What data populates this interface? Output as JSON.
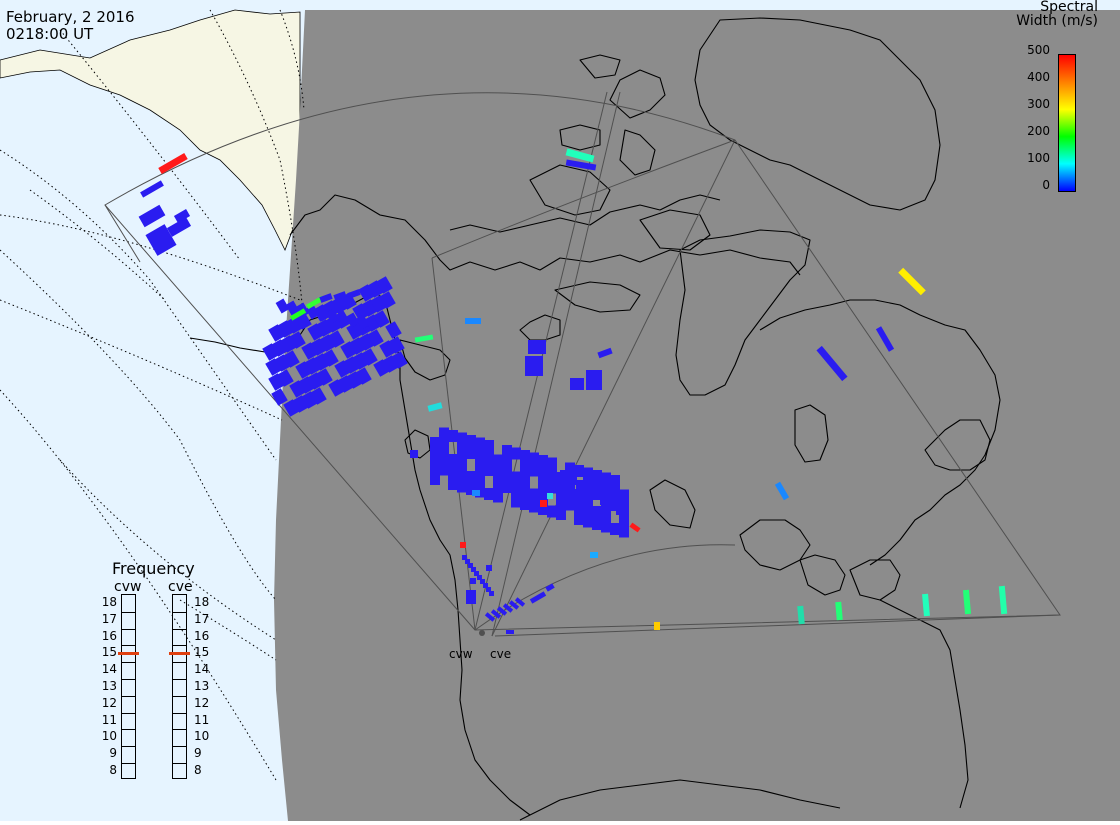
{
  "header": {
    "date": "February, 2 2016",
    "time": "0218:00 UT"
  },
  "colorbar": {
    "title_line1": "Spectral",
    "title_line2": "Width (m/s)",
    "ticks": [
      "500",
      "400",
      "300",
      "200",
      "100",
      "0"
    ],
    "gradient": [
      "#ff0000",
      "#ff8000",
      "#ffff00",
      "#00ff00",
      "#00ffff",
      "#0000ff"
    ]
  },
  "frequency_panel": {
    "title": "Frequency",
    "radars": [
      "cvw",
      "cve"
    ],
    "scale": [
      "18",
      "17",
      "16",
      "15",
      "14",
      "13",
      "12",
      "11",
      "10",
      "9",
      "8"
    ],
    "cvw_freq_mhz": 15,
    "cve_freq_mhz": 15,
    "marker_color": "#e04010"
  },
  "radar_sites": [
    "cvw",
    "cve"
  ],
  "colors": {
    "ocean": "#e6f4ff",
    "land_day": "#f6f6e4",
    "night": "#8c8c8c",
    "echo_low_width": "#2a1cf0"
  }
}
